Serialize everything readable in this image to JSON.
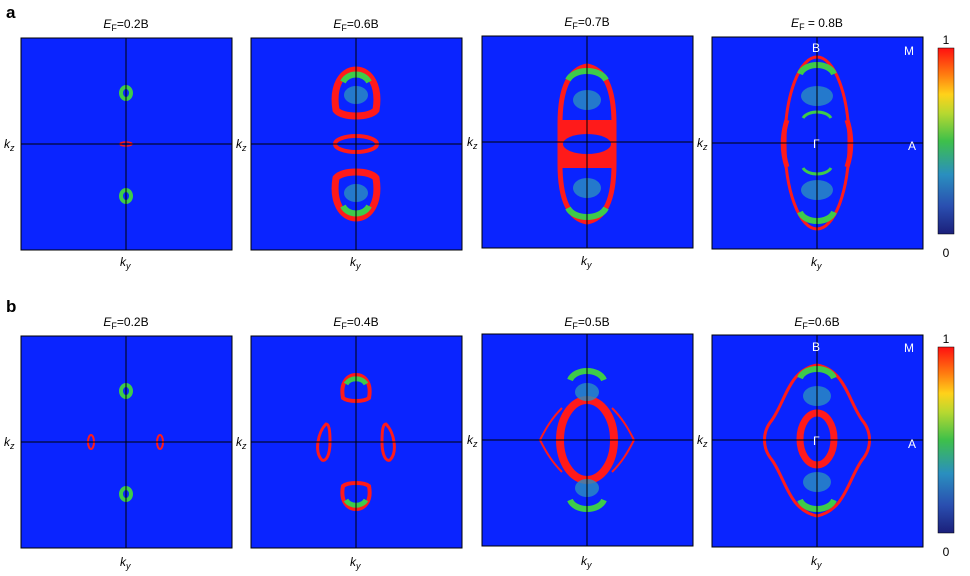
{
  "rows": [
    {
      "letter": "a",
      "panels": [
        {
          "ef_value": "=0.2B"
        },
        {
          "ef_value": "=0.6B"
        },
        {
          "ef_value": "=0.7B"
        },
        {
          "ef_value": " = 0.8B"
        }
      ],
      "colorbar": {
        "max": "1",
        "min": "0"
      }
    },
    {
      "letter": "b",
      "panels": [
        {
          "ef_value": "=0.2B"
        },
        {
          "ef_value": "=0.4B"
        },
        {
          "ef_value": "=0.5B"
        },
        {
          "ef_value": "=0.6B"
        }
      ],
      "colorbar": {
        "max": "1",
        "min": "0"
      }
    }
  ],
  "axis": {
    "ef_symbol": "E",
    "ef_sub": "F",
    "k_symbol": "k",
    "ky_sub": "y",
    "kz_sub": "z"
  },
  "points": {
    "b": "B",
    "m": "M",
    "a": "A",
    "gamma": "Γ"
  },
  "colors": {
    "background": "#0a24ff",
    "red": "#ff1a1a",
    "green": "#3ecb4a",
    "teal": "#2a8fbf"
  }
}
